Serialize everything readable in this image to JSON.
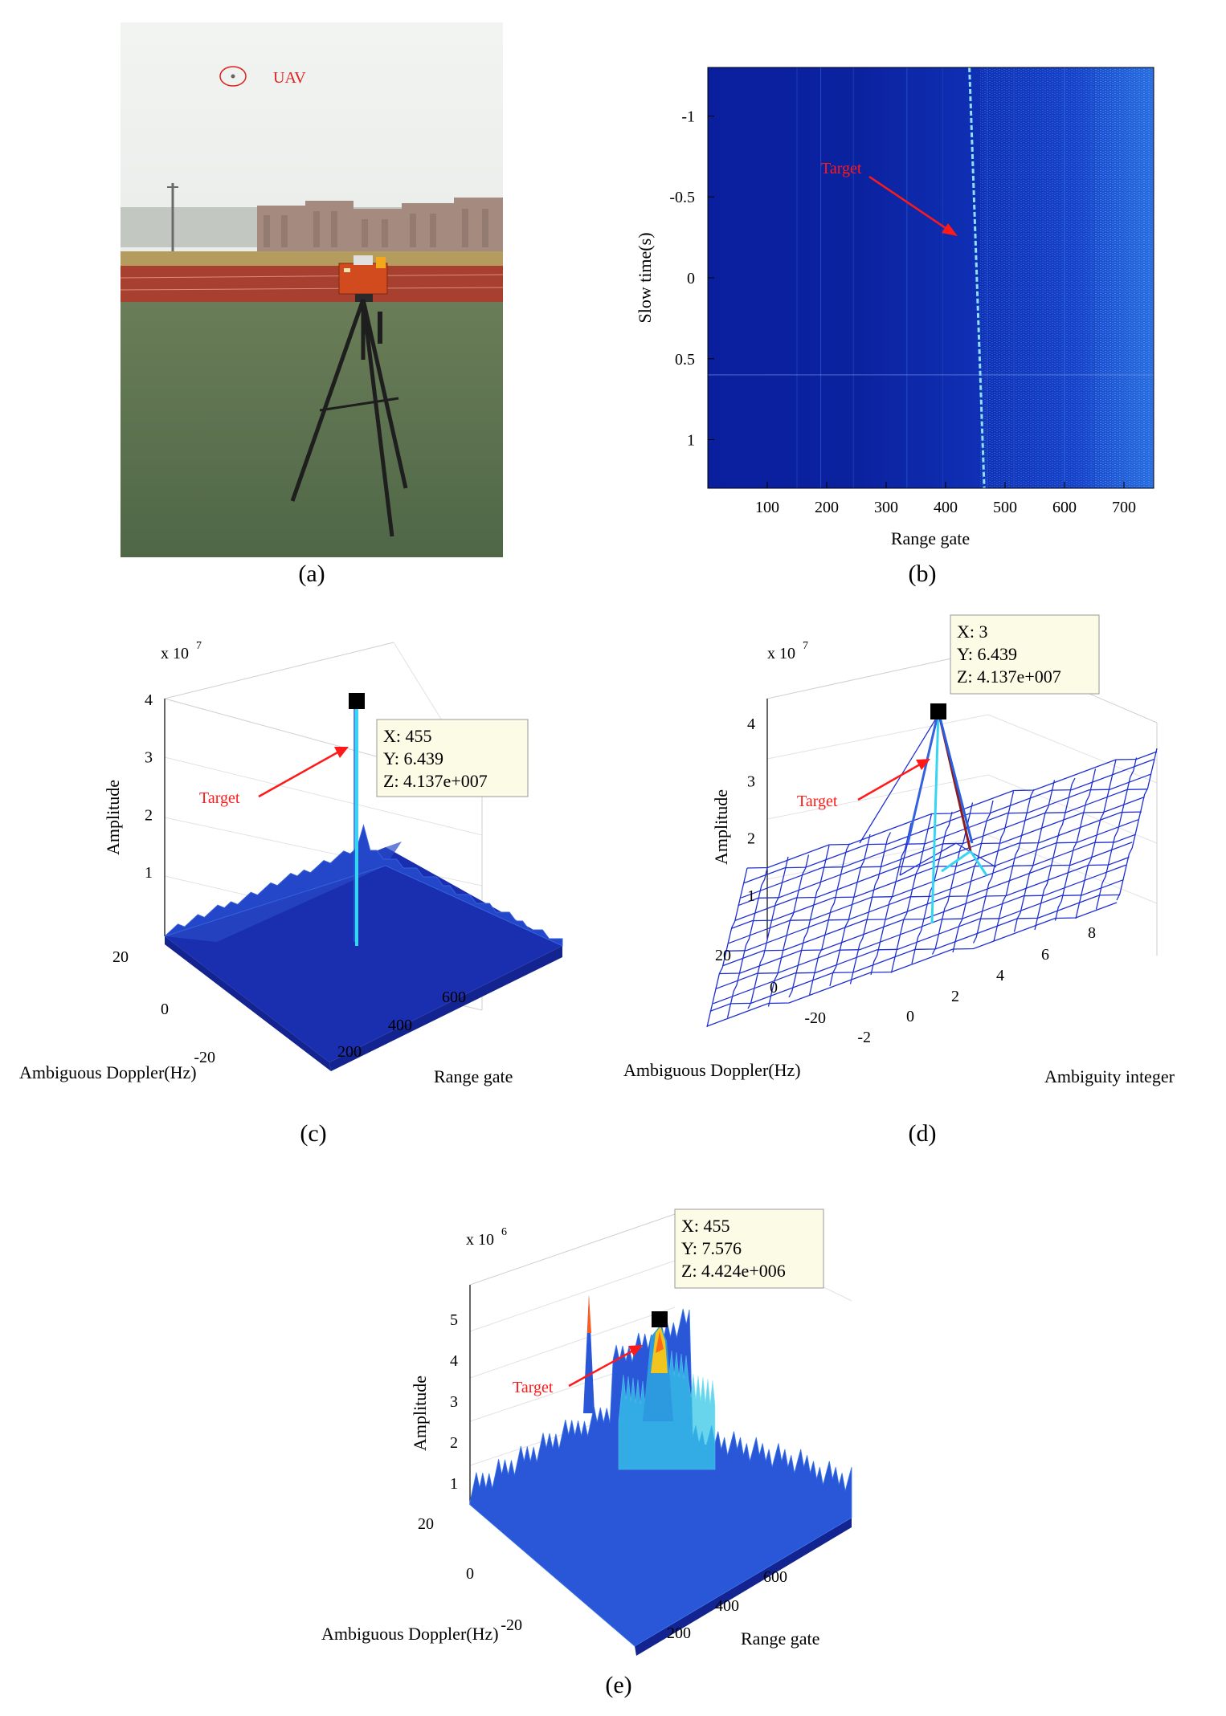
{
  "colors": {
    "heat_bg": "#0a1f9e",
    "heat_mid": "#1c4fd6",
    "heat_hi": "#39b8f0",
    "surface": "#1a2fb0",
    "surface_light": "#3f6fe0",
    "peak": "#36d6f2",
    "arrow": "#ff1a1a",
    "tooltip_bg": "#fbfbe6",
    "sky": "#e9ecea",
    "grass": "#58704c",
    "track": "#b04232",
    "radar_box": "#d24b1f"
  },
  "captions": {
    "a": "(a)",
    "b": "(b)",
    "c": "(c)",
    "d": "(d)",
    "e": "(e)"
  },
  "photo": {
    "uav_label": "UAV"
  },
  "chart_data": [
    {
      "id": "b",
      "type": "heatmap",
      "title": "",
      "xlabel": "Range gate",
      "ylabel": "Slow time(s)",
      "xlim": [
        0,
        750
      ],
      "ylim": [
        -1.3,
        1.3
      ],
      "y_reversed": true,
      "xticks": [
        "100",
        "200",
        "300",
        "400",
        "500",
        "600",
        "700"
      ],
      "yticks": [
        "-1",
        "-0.5",
        "0",
        "0.5",
        "1"
      ],
      "annotations": [
        {
          "text": "Target",
          "x": 440,
          "y": -0.35
        }
      ],
      "target_track": {
        "range_gate_start": 440,
        "range_gate_end": 465,
        "slow_time_start": -1.3,
        "slow_time_end": 1.3
      }
    },
    {
      "id": "c",
      "type": "surface",
      "zlabel": "Amplitude",
      "xlabel": "Range gate",
      "ylabel": "Ambiguous Doppler(Hz)",
      "zscale": "x 10",
      "zscale_exp": "7",
      "zticks": [
        "1",
        "2",
        "3",
        "4"
      ],
      "xticks": [
        "200",
        "400",
        "600"
      ],
      "yticks": [
        "20",
        "0",
        "-20"
      ],
      "annotations": [
        {
          "text": "Target"
        }
      ],
      "datatip": {
        "x": "X: 455",
        "y": "Y: 6.439",
        "z": "Z: 4.137e+007"
      },
      "peak": {
        "x": 455,
        "y": 6.439,
        "z": 41370000
      }
    },
    {
      "id": "d",
      "type": "mesh",
      "zlabel": "Amplitude",
      "xlabel": "Ambiguity integer",
      "ylabel": "Ambiguous Doppler(Hz)",
      "zscale": "x 10",
      "zscale_exp": "7",
      "zticks": [
        "1",
        "2",
        "3",
        "4"
      ],
      "xticks": [
        "-2",
        "0",
        "2",
        "4",
        "6",
        "8"
      ],
      "yticks": [
        "20",
        "0",
        "-20"
      ],
      "annotations": [
        {
          "text": "Target"
        }
      ],
      "datatip": {
        "x": "X: 3",
        "y": "Y: 6.439",
        "z": "Z: 4.137e+007"
      },
      "peak": {
        "x": 3,
        "y": 6.439,
        "z": 41370000
      }
    },
    {
      "id": "e",
      "type": "surface",
      "zlabel": "Amplitude",
      "xlabel": "Range gate",
      "ylabel": "Ambiguous Doppler(Hz)",
      "zscale": "x 10",
      "zscale_exp": "6",
      "zticks": [
        "1",
        "2",
        "3",
        "4",
        "5"
      ],
      "xticks": [
        "200",
        "400",
        "600"
      ],
      "yticks": [
        "20",
        "0",
        "-20"
      ],
      "annotations": [
        {
          "text": "Target"
        }
      ],
      "datatip": {
        "x": "X: 455",
        "y": "Y: 7.576",
        "z": "Z: 4.424e+006"
      },
      "peak": {
        "x": 455,
        "y": 7.576,
        "z": 4424000
      }
    }
  ]
}
